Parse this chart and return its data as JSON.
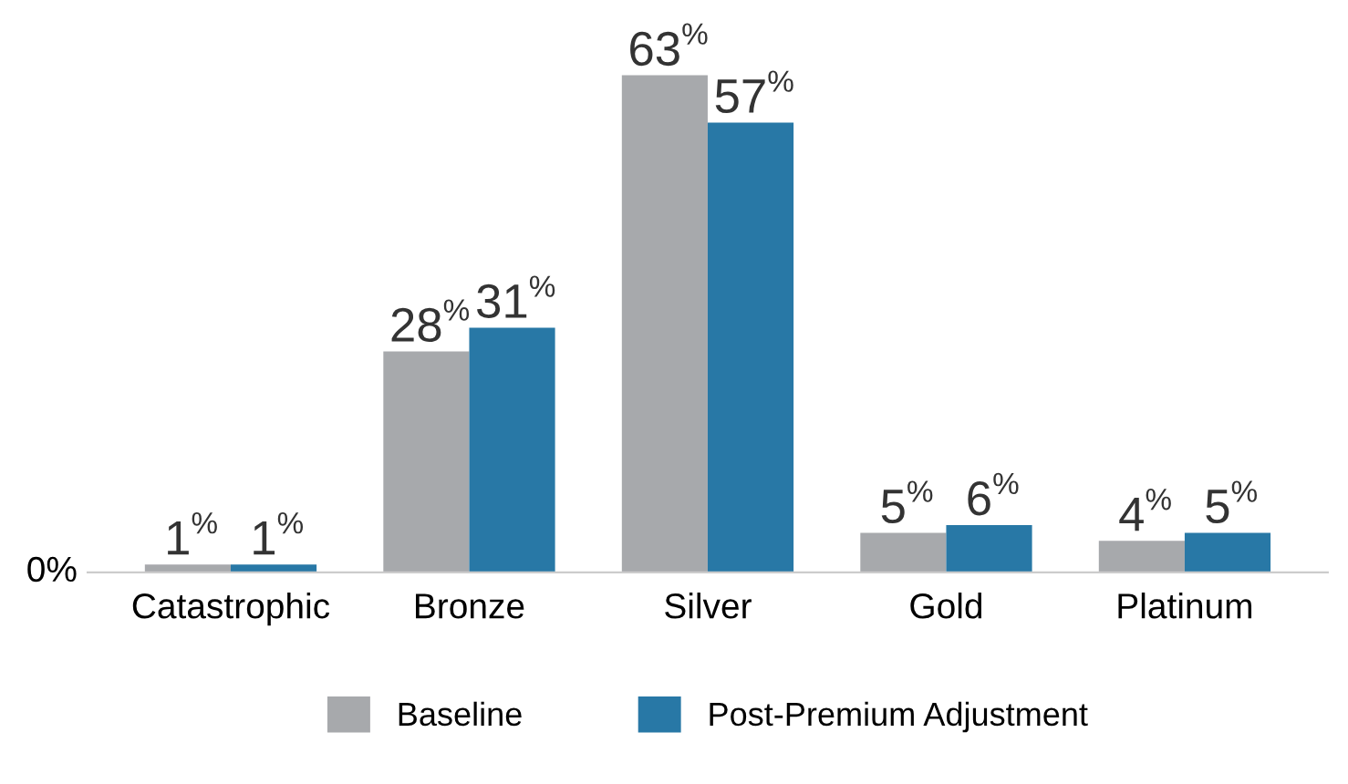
{
  "chart_data": {
    "type": "bar",
    "categories": [
      "Catastrophic",
      "Bronze",
      "Silver",
      "Gold",
      "Platinum"
    ],
    "series": [
      {
        "name": "Baseline",
        "color": "#a7a9ac",
        "values": [
          1,
          28,
          63,
          5,
          4
        ],
        "value_labels": [
          "1$^{%}$",
          "28$^{%}$",
          "63$^{%}$",
          "5$^{%}$",
          "4$^{%}$"
        ]
      },
      {
        "name": "Post-Premium Adjustment",
        "color": "#2878a6",
        "values": [
          1,
          31,
          57,
          6,
          5
        ],
        "value_labels": [
          "1$^{%}$",
          "31$^{%}$",
          "57$^{%}$",
          "6$^{%}$",
          "5$^{%}$"
        ]
      }
    ],
    "annotations": [
      "0%"
    ],
    "grid": false,
    "legend": "bottom"
  }
}
